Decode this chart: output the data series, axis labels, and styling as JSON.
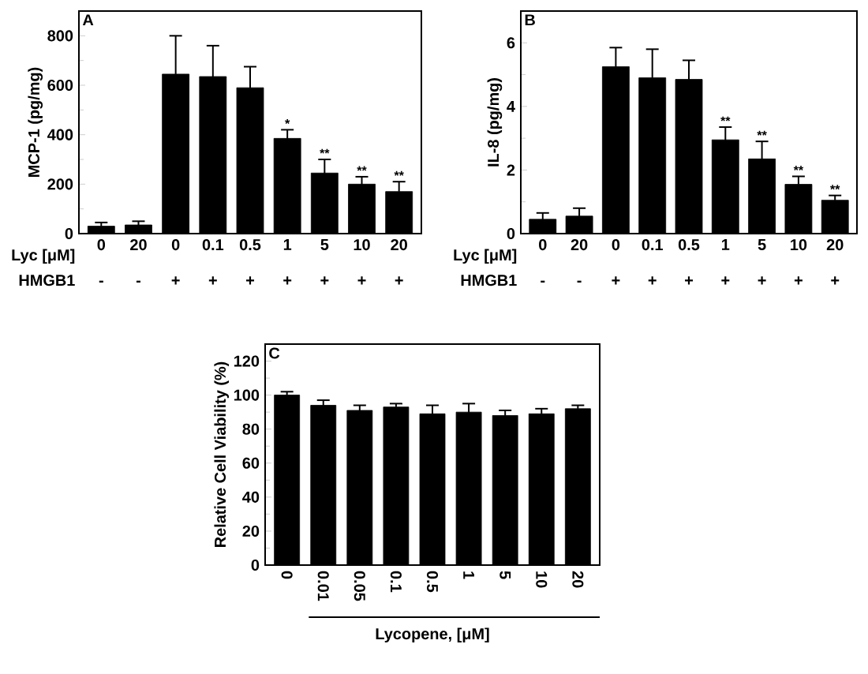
{
  "chart_data": [
    {
      "type": "bar",
      "title": "A",
      "ylabel": "MCP-1 (pg/mg)",
      "xlabel": "Lyc [μM]",
      "categories": [
        "0",
        "20",
        "0",
        "0.1",
        "0.5",
        "1",
        "5",
        "10",
        "20"
      ],
      "values": [
        30,
        35,
        645,
        635,
        590,
        385,
        245,
        200,
        170
      ],
      "errors": [
        15,
        15,
        155,
        125,
        85,
        35,
        55,
        30,
        40
      ],
      "value_labels": [
        null,
        null,
        null,
        null,
        null,
        "*",
        "**",
        "**",
        "**"
      ],
      "annotations": [
        "HMGB1",
        "-",
        "-",
        "+",
        "+",
        "+",
        "+",
        "+",
        "+",
        "+"
      ],
      "color": "#000000",
      "ylim": [
        0,
        900
      ],
      "yticks": [
        0,
        200,
        400,
        600,
        800
      ]
    },
    {
      "type": "bar",
      "title": "B",
      "ylabel": "IL-8 (pg/mg)",
      "xlabel": "Lyc [μM]",
      "categories": [
        "0",
        "20",
        "0",
        "0.1",
        "0.5",
        "1",
        "5",
        "10",
        "20"
      ],
      "values": [
        0.45,
        0.55,
        5.25,
        4.9,
        4.85,
        2.95,
        2.35,
        1.55,
        1.05
      ],
      "errors": [
        0.2,
        0.25,
        0.6,
        0.9,
        0.6,
        0.4,
        0.55,
        0.25,
        0.15
      ],
      "value_labels": [
        null,
        null,
        null,
        null,
        null,
        "**",
        "**",
        "**",
        "**"
      ],
      "annotations": [
        "HMGB1",
        "-",
        "-",
        "+",
        "+",
        "+",
        "+",
        "+",
        "+",
        "+"
      ],
      "color": "#000000",
      "ylim": [
        0,
        7
      ],
      "yticks": [
        0,
        2,
        4,
        6
      ]
    },
    {
      "type": "bar",
      "title": "C",
      "ylabel": "Relative Cell Viability (%)",
      "xlabel": "Lycopene, [μM]",
      "categories": [
        "0",
        "0.01",
        "0.05",
        "0.1",
        "0.5",
        "1",
        "5",
        "10",
        "20"
      ],
      "values": [
        100,
        94,
        91,
        93,
        89,
        90,
        88,
        89,
        92
      ],
      "errors": [
        2,
        3,
        3,
        2,
        5,
        5,
        3,
        3,
        2
      ],
      "color": "#000000",
      "ylim": [
        0,
        130
      ],
      "yticks": [
        0,
        20,
        40,
        60,
        80,
        100,
        120
      ]
    }
  ]
}
